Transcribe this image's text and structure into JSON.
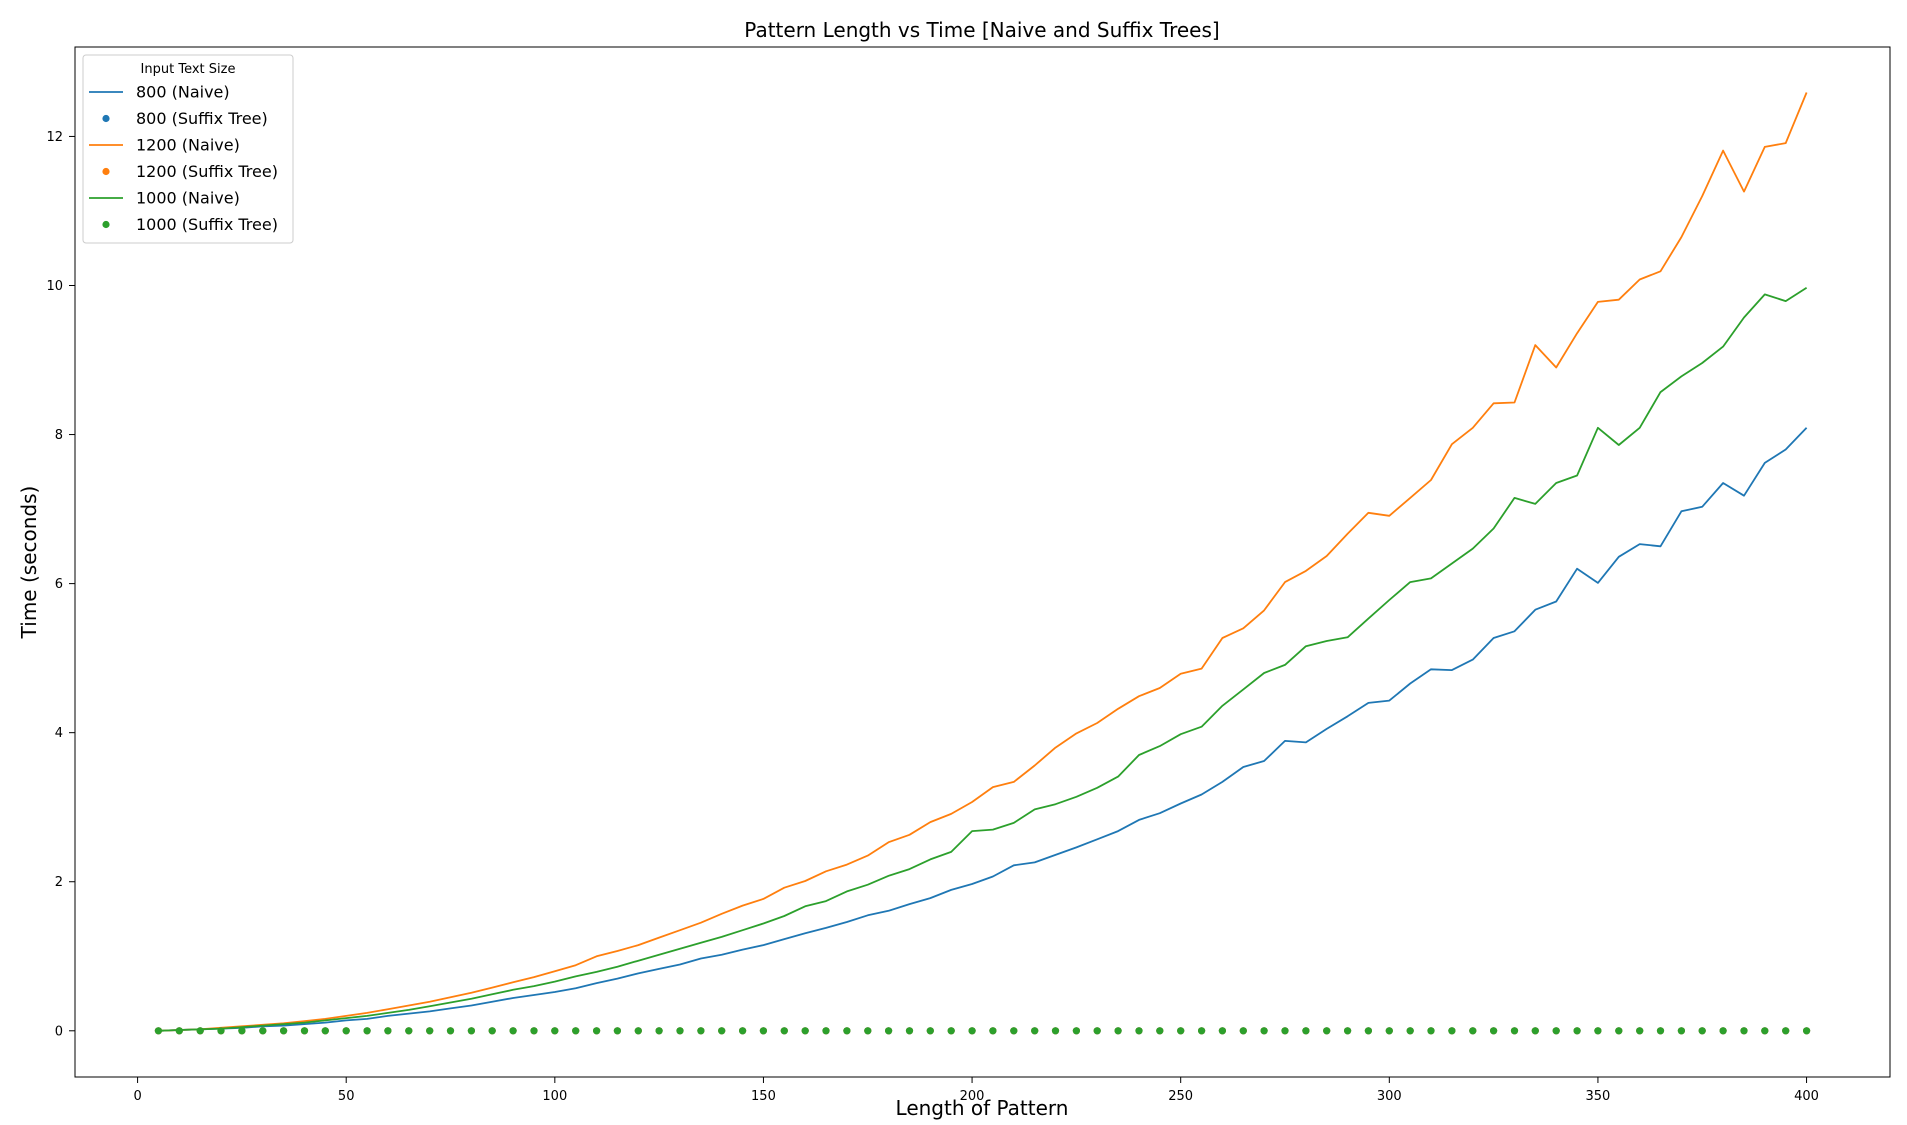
{
  "chart_data": {
    "type": "line",
    "title": "Pattern Length vs Time [Naive and Suffix Trees]",
    "xlabel": "Length of Pattern",
    "ylabel": "Time (seconds)",
    "xlim": [
      -15,
      420
    ],
    "ylim": [
      -0.62,
      13.2
    ],
    "xticks": [
      0,
      50,
      100,
      150,
      200,
      250,
      300,
      350,
      400
    ],
    "yticks": [
      0,
      2,
      4,
      6,
      8,
      10,
      12
    ],
    "grid": false,
    "legend": {
      "title": "Input Text Size",
      "placement": "top-left"
    },
    "x": [
      5,
      10,
      15,
      20,
      25,
      30,
      35,
      40,
      45,
      50,
      55,
      60,
      65,
      70,
      75,
      80,
      85,
      90,
      95,
      100,
      105,
      110,
      115,
      120,
      125,
      130,
      135,
      140,
      145,
      150,
      155,
      160,
      165,
      170,
      175,
      180,
      185,
      190,
      195,
      200,
      205,
      210,
      215,
      220,
      225,
      230,
      235,
      240,
      245,
      250,
      255,
      260,
      265,
      270,
      275,
      280,
      285,
      290,
      295,
      300,
      305,
      310,
      315,
      320,
      325,
      330,
      335,
      340,
      345,
      350,
      355,
      360,
      365,
      370,
      375,
      380,
      385,
      390,
      395,
      400
    ],
    "series": [
      {
        "name": "800 (Naive)",
        "style": "line",
        "color": "#1f77b4",
        "values": [
          0.0,
          0.01,
          0.02,
          0.03,
          0.04,
          0.06,
          0.07,
          0.09,
          0.11,
          0.14,
          0.16,
          0.2,
          0.23,
          0.26,
          0.3,
          0.34,
          0.39,
          0.44,
          0.48,
          0.52,
          0.57,
          0.64,
          0.7,
          0.77,
          0.83,
          0.89,
          0.97,
          1.02,
          1.09,
          1.15,
          1.23,
          1.31,
          1.38,
          1.46,
          1.55,
          1.61,
          1.7,
          1.78,
          1.89,
          1.97,
          2.07,
          2.22,
          2.26,
          2.36,
          2.46,
          2.57,
          2.68,
          2.83,
          2.92,
          3.05,
          3.17,
          3.34,
          3.54,
          3.62,
          3.89,
          3.87,
          4.05,
          4.22,
          4.4,
          4.43,
          4.66,
          4.85,
          4.84,
          4.98,
          5.27,
          5.36,
          5.65,
          5.76,
          6.2,
          6.01,
          6.36,
          6.53,
          6.5,
          6.97,
          7.03,
          7.35,
          7.18,
          7.62,
          7.8,
          8.09
        ]
      },
      {
        "name": "800 (Suffix Tree)",
        "style": "points",
        "color": "#1f77b4",
        "values": [
          0,
          0,
          0,
          0,
          0,
          0,
          0,
          0,
          0,
          0,
          0,
          0,
          0,
          0,
          0,
          0,
          0,
          0,
          0,
          0,
          0,
          0,
          0,
          0,
          0,
          0,
          0,
          0,
          0,
          0,
          0,
          0,
          0,
          0,
          0,
          0,
          0,
          0,
          0,
          0,
          0,
          0,
          0,
          0,
          0,
          0,
          0,
          0,
          0,
          0,
          0,
          0,
          0,
          0,
          0,
          0,
          0,
          0,
          0,
          0,
          0,
          0,
          0,
          0,
          0,
          0,
          0,
          0,
          0,
          0,
          0,
          0,
          0,
          0,
          0,
          0,
          0,
          0,
          0,
          0
        ]
      },
      {
        "name": "1200 (Naive)",
        "style": "line",
        "color": "#ff7f0e",
        "values": [
          0.0,
          0.01,
          0.02,
          0.04,
          0.06,
          0.08,
          0.1,
          0.13,
          0.16,
          0.2,
          0.24,
          0.29,
          0.34,
          0.39,
          0.45,
          0.51,
          0.58,
          0.65,
          0.72,
          0.8,
          0.88,
          1.0,
          1.07,
          1.15,
          1.25,
          1.35,
          1.45,
          1.57,
          1.68,
          1.77,
          1.92,
          2.01,
          2.14,
          2.23,
          2.35,
          2.53,
          2.63,
          2.8,
          2.91,
          3.07,
          3.27,
          3.34,
          3.56,
          3.8,
          3.99,
          4.13,
          4.32,
          4.49,
          4.6,
          4.79,
          4.86,
          5.27,
          5.4,
          5.64,
          6.02,
          6.17,
          6.37,
          6.67,
          6.95,
          6.91,
          7.15,
          7.39,
          7.87,
          8.09,
          8.42,
          8.43,
          9.2,
          8.9,
          9.36,
          9.78,
          9.81,
          10.08,
          10.19,
          10.65,
          11.2,
          11.81,
          11.26,
          11.86,
          11.91,
          12.59
        ]
      },
      {
        "name": "1200 (Suffix Tree)",
        "style": "points",
        "color": "#ff7f0e",
        "values": [
          0,
          0,
          0,
          0,
          0,
          0,
          0,
          0,
          0,
          0,
          0,
          0,
          0,
          0,
          0,
          0,
          0,
          0,
          0,
          0,
          0,
          0,
          0,
          0,
          0,
          0,
          0,
          0,
          0,
          0,
          0,
          0,
          0,
          0,
          0,
          0,
          0,
          0,
          0,
          0,
          0,
          0,
          0,
          0,
          0,
          0,
          0,
          0,
          0,
          0,
          0,
          0,
          0,
          0,
          0,
          0,
          0,
          0,
          0,
          0,
          0,
          0,
          0,
          0,
          0,
          0,
          0,
          0,
          0,
          0,
          0,
          0,
          0,
          0,
          0,
          0,
          0,
          0,
          0,
          0
        ]
      },
      {
        "name": "1000 (Naive)",
        "style": "line",
        "color": "#2ca02c",
        "values": [
          0.0,
          0.01,
          0.02,
          0.03,
          0.05,
          0.07,
          0.09,
          0.11,
          0.14,
          0.17,
          0.2,
          0.24,
          0.28,
          0.33,
          0.38,
          0.43,
          0.49,
          0.55,
          0.6,
          0.66,
          0.73,
          0.79,
          0.86,
          0.94,
          1.02,
          1.1,
          1.18,
          1.26,
          1.35,
          1.44,
          1.54,
          1.67,
          1.74,
          1.87,
          1.96,
          2.08,
          2.17,
          2.3,
          2.4,
          2.68,
          2.7,
          2.79,
          2.97,
          3.04,
          3.14,
          3.26,
          3.41,
          3.7,
          3.82,
          3.98,
          4.08,
          4.36,
          4.58,
          4.8,
          4.91,
          5.16,
          5.23,
          5.28,
          5.53,
          5.78,
          6.02,
          6.07,
          6.27,
          6.47,
          6.74,
          7.15,
          7.07,
          7.35,
          7.45,
          8.09,
          7.86,
          8.09,
          8.57,
          8.78,
          8.96,
          9.18,
          9.57,
          9.88,
          9.79,
          9.97
        ]
      },
      {
        "name": "1000 (Suffix Tree)",
        "style": "points",
        "color": "#2ca02c",
        "values": [
          0,
          0,
          0,
          0,
          0,
          0,
          0,
          0,
          0,
          0,
          0,
          0,
          0,
          0,
          0,
          0,
          0,
          0,
          0,
          0,
          0,
          0,
          0,
          0,
          0,
          0,
          0,
          0,
          0,
          0,
          0,
          0,
          0,
          0,
          0,
          0,
          0,
          0,
          0,
          0,
          0,
          0,
          0,
          0,
          0,
          0,
          0,
          0,
          0,
          0,
          0,
          0,
          0,
          0,
          0,
          0,
          0,
          0,
          0,
          0,
          0,
          0,
          0,
          0,
          0,
          0,
          0,
          0,
          0,
          0,
          0,
          0,
          0,
          0,
          0,
          0,
          0,
          0,
          0,
          0
        ]
      }
    ]
  }
}
